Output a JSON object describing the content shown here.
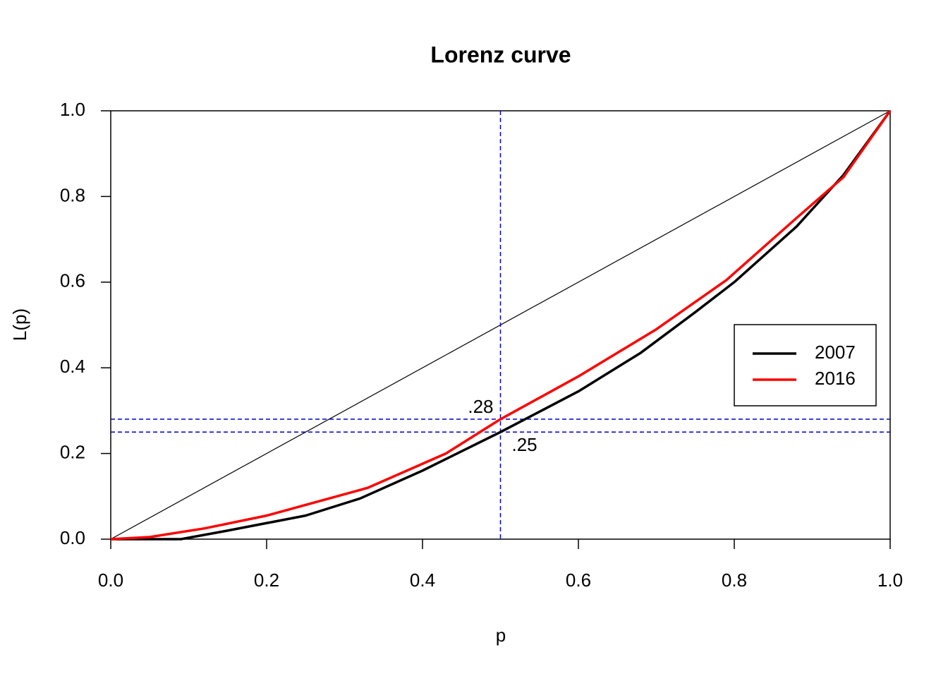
{
  "chart_data": {
    "type": "line",
    "title": "Lorenz curve",
    "x_label": "p",
    "y_label": "L(p)",
    "xlim": [
      0,
      1
    ],
    "ylim": [
      0,
      1
    ],
    "xticks": [
      {
        "value": 0,
        "label": "0.0"
      },
      0.2,
      0.4,
      0.6,
      0.8,
      {
        "value": 1,
        "label": "1.0"
      }
    ],
    "yticks": [
      {
        "value": 0,
        "label": "0.0"
      },
      0.2,
      0.4,
      0.6,
      0.8,
      {
        "value": 1,
        "label": "1.0"
      }
    ],
    "equality_line": {
      "x": [
        0,
        1
      ],
      "y": [
        0,
        1
      ],
      "color": "#000000"
    },
    "series": [
      {
        "name": "2007",
        "color": "#000000",
        "x": [
          0,
          0.09,
          0.15,
          0.25,
          0.32,
          0.4,
          0.5,
          0.6,
          0.68,
          0.75,
          0.8,
          0.88,
          0.94,
          1
        ],
        "values": [
          0,
          0,
          0.02,
          0.055,
          0.095,
          0.16,
          0.25,
          0.345,
          0.435,
          0.53,
          0.6,
          0.73,
          0.85,
          1
        ]
      },
      {
        "name": "2016",
        "color": "#ff0000",
        "x": [
          0,
          0.05,
          0.12,
          0.2,
          0.3,
          0.33,
          0.43,
          0.5,
          0.6,
          0.7,
          0.79,
          0.88,
          0.94,
          1
        ],
        "values": [
          0,
          0.005,
          0.025,
          0.055,
          0.105,
          0.12,
          0.2,
          0.28,
          0.38,
          0.49,
          0.605,
          0.75,
          0.845,
          1
        ]
      }
    ],
    "vlines": [
      0.5
    ],
    "hlines": [
      {
        "value": 0.28,
        "label": ".28"
      },
      {
        "value": 0.25,
        "label": ".25"
      }
    ],
    "reference_color": "#0000cc",
    "legend": "right"
  }
}
